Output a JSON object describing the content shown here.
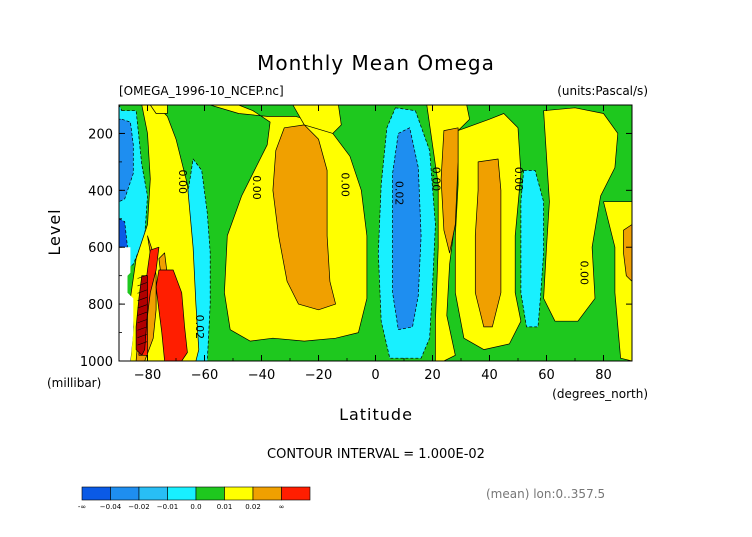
{
  "chart_data": {
    "type": "contour",
    "title": "Monthly Mean Omega",
    "file_label": "[OMEGA_1996-10_NCEP.nc]",
    "units_label": "(units:Pascal/s)",
    "xlabel": "Latitude",
    "x_unit_label": "(degrees_north)",
    "ylabel": "Level",
    "y_unit_label": "(millibar)",
    "xlim": [
      -90,
      90
    ],
    "ylim": [
      1000,
      100
    ],
    "x_ticks": [
      -80,
      -60,
      -40,
      -20,
      0,
      20,
      40,
      60,
      80
    ],
    "y_ticks": [
      200,
      400,
      600,
      800,
      1000
    ],
    "contour_interval_label": "CONTOUR INTERVAL = 1.000E-02",
    "footnote": "(mean) lon:0..357.5",
    "contour_labels": [
      {
        "text": "0.00",
        "lat": -69,
        "lev": 370
      },
      {
        "text": "0.00",
        "lat": -43,
        "lev": 390
      },
      {
        "text": "0.00",
        "lat": -12,
        "lev": 380
      },
      {
        "text": "0.02",
        "lat": 7,
        "lev": 410
      },
      {
        "text": "0.00",
        "lat": 20,
        "lev": 360
      },
      {
        "text": "0.00",
        "lat": 49,
        "lev": 360
      },
      {
        "text": "0.00",
        "lat": 72,
        "lev": 690
      },
      {
        "text": "0.02",
        "lat": -63,
        "lev": 880
      }
    ],
    "colorbar": {
      "labels": [
        "-∞",
        "−0.04",
        "−0.02",
        "−0.01",
        "0.0",
        "0.01",
        "0.02",
        "∞"
      ],
      "colors": [
        "#0a5ae6",
        "#1e8ef0",
        "#28bef5",
        "#18f0ff",
        "#1ec81e",
        "#ffff00",
        "#f0a000",
        "#ff1e00"
      ]
    },
    "fields": [
      {
        "level": "green",
        "color": "#1ec81e",
        "polygons": [
          [
            [
              -90,
              100
            ],
            [
              90,
              100
            ],
            [
              90,
              1000
            ],
            [
              -90,
              1000
            ]
          ]
        ]
      },
      {
        "level": "light-blue",
        "color": "#18f0ff",
        "polygons": [
          [
            [
              -89,
              120
            ],
            [
              -84,
              120
            ],
            [
              -82,
              310
            ],
            [
              -80,
              420
            ],
            [
              -81,
              560
            ],
            [
              -85,
              660
            ],
            [
              -89,
              690
            ],
            [
              -90,
              720
            ],
            [
              -90,
              100
            ]
          ],
          [
            [
              -64,
              290
            ],
            [
              -61,
              330
            ],
            [
              -59,
              480
            ],
            [
              -58,
              620
            ],
            [
              -58,
              800
            ],
            [
              -59,
              1000
            ],
            [
              -65,
              1000
            ],
            [
              -66,
              820
            ],
            [
              -67,
              600
            ],
            [
              -66,
              420
            ]
          ],
          [
            [
              7,
              110
            ],
            [
              14,
              120
            ],
            [
              19,
              260
            ],
            [
              21,
              520
            ],
            [
              20,
              740
            ],
            [
              19,
              920
            ],
            [
              16,
              990
            ],
            [
              5,
              990
            ],
            [
              2,
              860
            ],
            [
              1,
              620
            ],
            [
              2,
              380
            ],
            [
              4,
              180
            ]
          ],
          [
            [
              52,
              330
            ],
            [
              56,
              330
            ],
            [
              59,
              440
            ],
            [
              59,
              620
            ],
            [
              58,
              760
            ],
            [
              57,
              880
            ],
            [
              53,
              880
            ],
            [
              51,
              760
            ],
            [
              51,
              560
            ],
            [
              51,
              440
            ]
          ]
        ]
      },
      {
        "level": "blue",
        "color": "#1e8ef0",
        "polygons": [
          [
            [
              -89,
              150
            ],
            [
              -86,
              160
            ],
            [
              -85,
              240
            ],
            [
              -85,
              340
            ],
            [
              -88,
              430
            ],
            [
              -90,
              440
            ],
            [
              -90,
              150
            ]
          ],
          [
            [
              8,
              200
            ],
            [
              12,
              180
            ],
            [
              15,
              320
            ],
            [
              16,
              560
            ],
            [
              15,
              770
            ],
            [
              13,
              880
            ],
            [
              8,
              890
            ],
            [
              6,
              760
            ],
            [
              6,
              560
            ],
            [
              6,
              340
            ]
          ]
        ]
      },
      {
        "level": "dark-blue",
        "color": "#0a5ae6",
        "polygons": [
          [
            [
              -90,
              500
            ],
            [
              -88,
              510
            ],
            [
              -87,
              600
            ],
            [
              -90,
              600
            ]
          ]
        ]
      },
      {
        "level": "yellow",
        "color": "#ffff00",
        "polygons": [
          [
            [
              -82,
              100
            ],
            [
              -77,
              100
            ],
            [
              -73,
              140
            ],
            [
              -70,
              220
            ],
            [
              -66,
              380
            ],
            [
              -64,
              600
            ],
            [
              -63,
              800
            ],
            [
              -62,
              960
            ],
            [
              -63,
              1000
            ],
            [
              -86,
              1000
            ],
            [
              -85,
              880
            ],
            [
              -86,
              780
            ],
            [
              -84,
              640
            ],
            [
              -80,
              520
            ],
            [
              -79,
              360
            ],
            [
              -80,
              200
            ]
          ],
          [
            [
              -79,
              100
            ],
            [
              -73,
              100
            ],
            [
              -73,
              130
            ],
            [
              -77,
              130
            ]
          ],
          [
            [
              -58,
              100
            ],
            [
              -48,
              100
            ],
            [
              -43,
              120
            ],
            [
              -37,
              160
            ],
            [
              -38,
              240
            ],
            [
              -42,
              320
            ],
            [
              -47,
              420
            ],
            [
              -52,
              560
            ],
            [
              -53,
              760
            ],
            [
              -51,
              890
            ],
            [
              -44,
              930
            ],
            [
              -36,
              920
            ],
            [
              -25,
              930
            ],
            [
              -14,
              920
            ],
            [
              -6,
              900
            ],
            [
              -3,
              780
            ],
            [
              -3,
              560
            ],
            [
              -5,
              400
            ],
            [
              -9,
              280
            ],
            [
              -15,
              200
            ],
            [
              -21,
              160
            ],
            [
              -28,
              140
            ],
            [
              -38,
              140
            ],
            [
              -48,
              130
            ]
          ],
          [
            [
              -29,
              100
            ],
            [
              -13,
              100
            ],
            [
              -12,
              170
            ],
            [
              -15,
              200
            ],
            [
              -25,
              170
            ]
          ],
          [
            [
              18,
              100
            ],
            [
              32,
              100
            ],
            [
              33,
              150
            ],
            [
              28,
              200
            ],
            [
              27,
              340
            ],
            [
              28,
              500
            ],
            [
              26,
              660
            ],
            [
              25,
              840
            ],
            [
              28,
              980
            ],
            [
              24,
              1000
            ],
            [
              21,
              1000
            ],
            [
              21,
              860
            ],
            [
              22,
              600
            ],
            [
              22,
              380
            ],
            [
              20,
              240
            ]
          ],
          [
            [
              29,
              190
            ],
            [
              40,
              150
            ],
            [
              45,
              130
            ],
            [
              50,
              180
            ],
            [
              51,
              340
            ],
            [
              49,
              560
            ],
            [
              49,
              760
            ],
            [
              51,
              860
            ],
            [
              47,
              940
            ],
            [
              38,
              960
            ],
            [
              31,
              920
            ],
            [
              28,
              760
            ],
            [
              28,
              560
            ],
            [
              29,
              380
            ]
          ],
          [
            [
              59,
              120
            ],
            [
              70,
              110
            ],
            [
              80,
              130
            ],
            [
              85,
              200
            ],
            [
              84,
              320
            ],
            [
              79,
              420
            ],
            [
              76,
              600
            ],
            [
              77,
              780
            ],
            [
              71,
              860
            ],
            [
              63,
              860
            ],
            [
              59,
              780
            ],
            [
              60,
              600
            ],
            [
              61,
              440
            ]
          ],
          [
            [
              80,
              440
            ],
            [
              90,
              440
            ],
            [
              90,
              1000
            ],
            [
              86,
              990
            ],
            [
              84,
              760
            ],
            [
              84,
              600
            ]
          ]
        ]
      },
      {
        "level": "orange",
        "color": "#f0a000",
        "polygons": [
          [
            [
              -80,
              560
            ],
            [
              -79,
              620
            ],
            [
              -80,
              720
            ],
            [
              -82,
              800
            ],
            [
              -83,
              880
            ],
            [
              -84,
              1000
            ],
            [
              -81,
              1000
            ],
            [
              -78,
              920
            ],
            [
              -77,
              820
            ],
            [
              -77,
              700
            ],
            [
              -78,
              620
            ]
          ],
          [
            [
              -76,
              640
            ],
            [
              -74,
              620
            ],
            [
              -73,
              700
            ],
            [
              -74,
              760
            ],
            [
              -75,
              720
            ]
          ],
          [
            [
              -32,
              180
            ],
            [
              -25,
              170
            ],
            [
              -20,
              220
            ],
            [
              -17,
              330
            ],
            [
              -17,
              560
            ],
            [
              -16,
              720
            ],
            [
              -14,
              800
            ],
            [
              -20,
              820
            ],
            [
              -27,
              800
            ],
            [
              -31,
              720
            ],
            [
              -34,
              560
            ],
            [
              -36,
              400
            ],
            [
              -35,
              260
            ]
          ],
          [
            [
              24,
              190
            ],
            [
              29,
              180
            ],
            [
              29,
              300
            ],
            [
              28,
              520
            ],
            [
              26,
              620
            ],
            [
              24,
              540
            ],
            [
              23,
              360
            ]
          ],
          [
            [
              36,
              300
            ],
            [
              43,
              290
            ],
            [
              44,
              400
            ],
            [
              44,
              600
            ],
            [
              44,
              760
            ],
            [
              41,
              880
            ],
            [
              38,
              880
            ],
            [
              35,
              760
            ],
            [
              35,
              560
            ],
            [
              36,
              400
            ]
          ],
          [
            [
              87,
              540
            ],
            [
              90,
              520
            ],
            [
              90,
              720
            ],
            [
              88,
              700
            ],
            [
              87,
              620
            ]
          ]
        ]
      },
      {
        "level": "red",
        "color": "#ff1e00",
        "polygons": [
          [
            [
              -79,
              610
            ],
            [
              -76,
              600
            ],
            [
              -77,
              680
            ],
            [
              -79,
              760
            ],
            [
              -80,
              840
            ],
            [
              -80,
              980
            ],
            [
              -83,
              980
            ],
            [
              -83,
              860
            ],
            [
              -81,
              760
            ],
            [
              -80,
              680
            ]
          ],
          [
            [
              -76,
              680
            ],
            [
              -71,
              680
            ],
            [
              -68,
              760
            ],
            [
              -67,
              880
            ],
            [
              -66,
              970
            ],
            [
              -68,
              1000
            ],
            [
              -74,
              1000
            ],
            [
              -75,
              900
            ],
            [
              -76,
              820
            ],
            [
              -77,
              740
            ]
          ]
        ]
      },
      {
        "level": "dark-red",
        "color": "#b00000",
        "polygons": [
          [
            [
              -82,
              700
            ],
            [
              -80,
              700
            ],
            [
              -80,
              830
            ],
            [
              -81,
              960
            ],
            [
              -82,
              980
            ],
            [
              -84,
              960
            ],
            [
              -84,
              880
            ],
            [
              -83,
              780
            ]
          ]
        ]
      },
      {
        "level": "missing",
        "color": "#ffffff",
        "polygons": [
          [
            [
              -90,
              600
            ],
            [
              -86,
              600
            ],
            [
              -86,
              690
            ],
            [
              -87,
              700
            ],
            [
              -87,
              760
            ],
            [
              -85,
              780
            ],
            [
              -85,
              900
            ],
            [
              -86,
              1000
            ],
            [
              -90,
              1000
            ]
          ]
        ]
      }
    ]
  }
}
